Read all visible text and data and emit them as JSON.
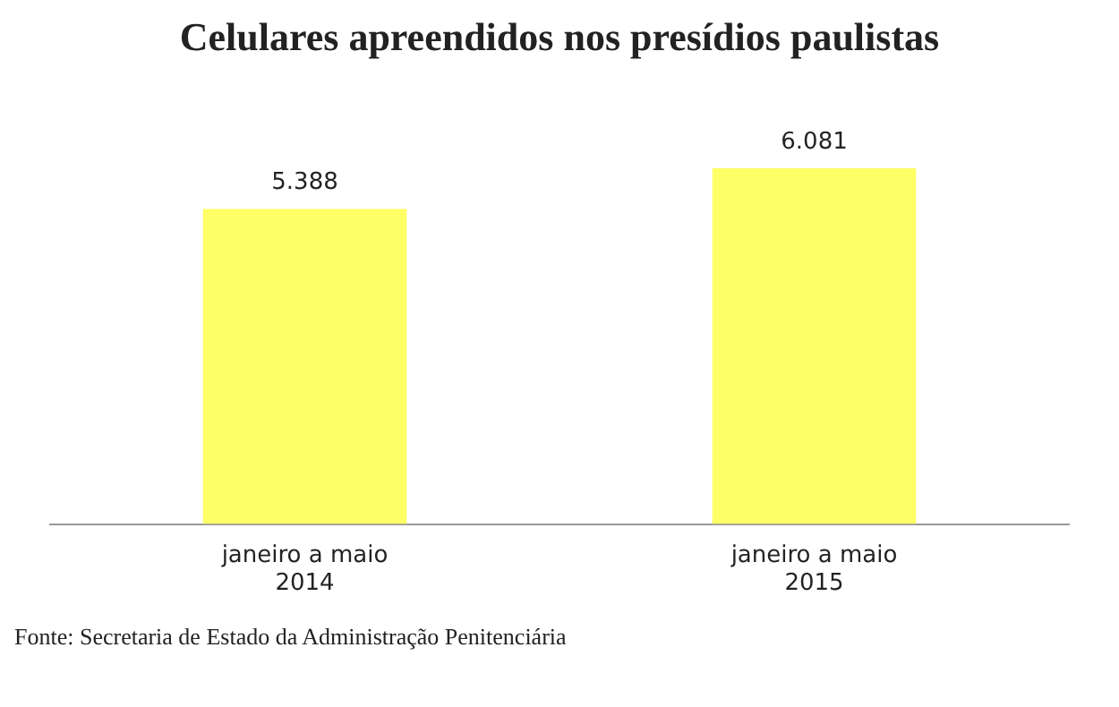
{
  "chart_data": {
    "type": "bar",
    "title": "Celulares apreendidos nos presídios paulistas",
    "categories": [
      "janeiro a maio\n2014",
      "janeiro a maio\n2015"
    ],
    "values": [
      5388,
      6081
    ],
    "color": "#ffff66",
    "value_labels": [
      "5.388",
      "6.081"
    ],
    "annotations": [
      "Fonte: Secretaria de Estado da Administração Penitenciária"
    ],
    "grid": false,
    "legend": false
  }
}
